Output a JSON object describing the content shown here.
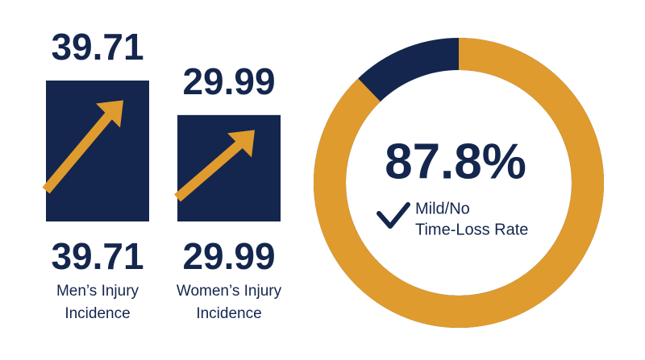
{
  "stats": [
    {
      "value": 39.71,
      "label": "39.71",
      "caption": [
        "Men’s Injury",
        "Incidence"
      ]
    },
    {
      "value": 29.99,
      "label": "29.99",
      "caption": [
        "Women’s Injury",
        "Incidence"
      ]
    }
  ],
  "donut": {
    "value": 87.8,
    "label": "87.8%",
    "caption": [
      "Mild/No",
      "Time-Loss Rate"
    ],
    "color": "#e09b2e",
    "rest_color": "#14264d"
  }
}
